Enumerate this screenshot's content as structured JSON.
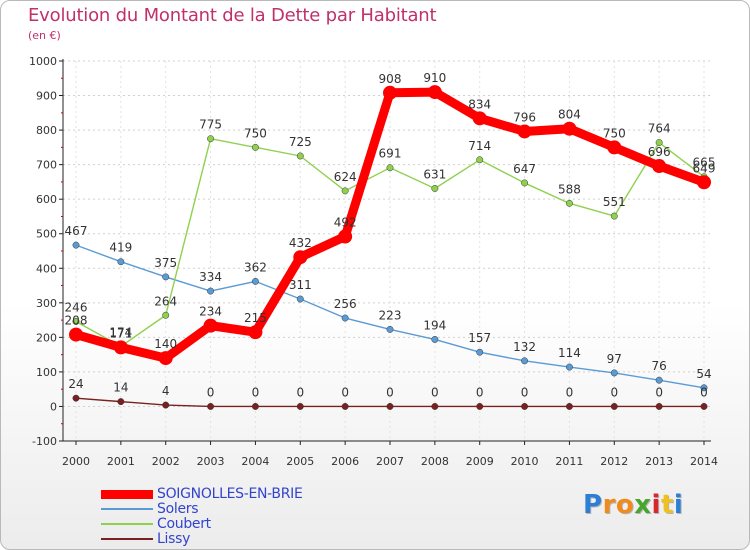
{
  "chart_data": {
    "type": "line",
    "title": "Evolution du Montant de la Dette par Habitant",
    "subtitle": "(en €)",
    "x": [
      "2000",
      "2001",
      "2002",
      "2003",
      "2004",
      "2005",
      "2006",
      "2007",
      "2008",
      "2009",
      "2010",
      "2011",
      "2012",
      "2013",
      "2014"
    ],
    "ylim": [
      -100,
      1000
    ],
    "yticks": [
      "-100",
      "0",
      "100",
      "200",
      "300",
      "400",
      "500",
      "600",
      "700",
      "800",
      "900",
      "1000"
    ],
    "grid": true,
    "legend_position": "bottom-left",
    "series": [
      {
        "name": "SOIGNOLLES-EN-BRIE",
        "color": "#ff0000",
        "values": [
          208,
          171,
          140,
          234,
          215,
          432,
          492,
          908,
          910,
          834,
          796,
          804,
          750,
          696,
          649
        ],
        "labels": [
          "208",
          "171",
          "140",
          "234",
          "215",
          "432",
          "492",
          "908",
          "910",
          "834",
          "796",
          "804",
          "750",
          "696",
          "649"
        ]
      },
      {
        "name": "Solers",
        "color": "#5b9bd5",
        "values": [
          467,
          419,
          375,
          334,
          362,
          311,
          256,
          223,
          194,
          157,
          132,
          114,
          97,
          76,
          54
        ],
        "labels": [
          "467",
          "419",
          "375",
          "334",
          "362",
          "311",
          "256",
          "223",
          "194",
          "157",
          "132",
          "114",
          "97",
          "76",
          "54"
        ]
      },
      {
        "name": "Coubert",
        "color": "#8fd14f",
        "values": [
          246,
          174,
          264,
          775,
          750,
          725,
          624,
          691,
          631,
          714,
          647,
          588,
          551,
          764,
          665
        ],
        "labels": [
          "246",
          "174",
          "264",
          "775",
          "750",
          "725",
          "624",
          "691",
          "631",
          "714",
          "647",
          "588",
          "551",
          "764",
          "665"
        ]
      },
      {
        "name": "Lissy",
        "color": "#7a2020",
        "values": [
          24,
          14,
          4,
          0,
          0,
          0,
          0,
          0,
          0,
          0,
          0,
          0,
          0,
          0,
          0
        ],
        "labels": [
          "24",
          "14",
          "4",
          "0",
          "0",
          "0",
          "0",
          "0",
          "0",
          "0",
          "0",
          "0",
          "0",
          "0",
          "0"
        ]
      }
    ]
  },
  "branding": {
    "logo_letters": [
      "P",
      "r",
      "o",
      "x",
      "i",
      "t",
      "i"
    ],
    "logo_colors": [
      "#2d7fd6",
      "#f08a1c",
      "#f08a1c",
      "#4aa52e",
      "#d9262d",
      "#f0c020",
      "#2d7fd6"
    ]
  }
}
